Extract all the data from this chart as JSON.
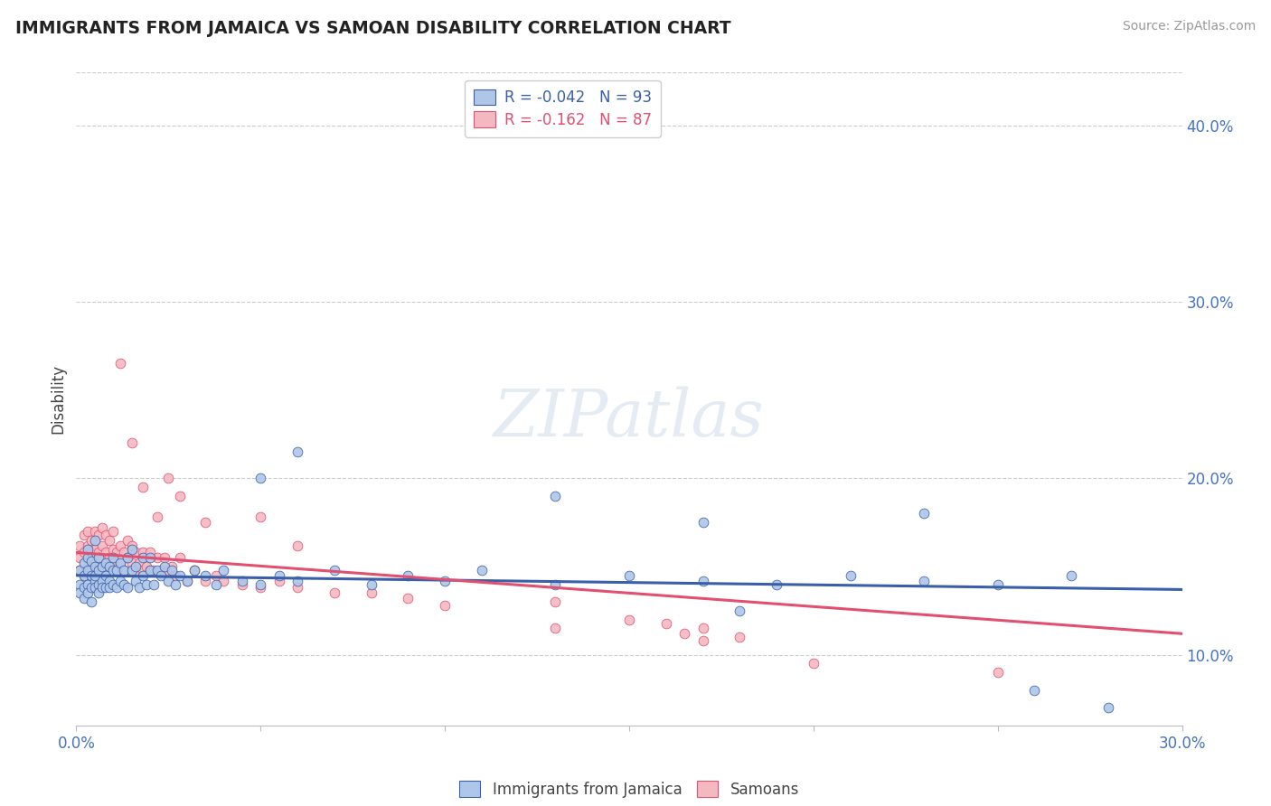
{
  "title": "IMMIGRANTS FROM JAMAICA VS SAMOAN DISABILITY CORRELATION CHART",
  "source": "Source: ZipAtlas.com",
  "ylabel": "Disability",
  "xlim": [
    0.0,
    0.3
  ],
  "ylim": [
    0.06,
    0.43
  ],
  "xticks": [
    0.0,
    0.05,
    0.1,
    0.15,
    0.2,
    0.25,
    0.3
  ],
  "xtick_labels": [
    "0.0%",
    "",
    "",
    "",
    "",
    "",
    "30.0%"
  ],
  "yticks": [
    0.1,
    0.2,
    0.3,
    0.4
  ],
  "ytick_labels": [
    "10.0%",
    "20.0%",
    "30.0%",
    "40.0%"
  ],
  "legend_r1": "R = -0.042   N = 93",
  "legend_r2": "R = -0.162   N = 87",
  "legend_label1": "Immigrants from Jamaica",
  "legend_label2": "Samoans",
  "color_blue": "#aec6e8",
  "color_pink": "#f4b8c1",
  "line_color_blue": "#3a5fa8",
  "line_color_pink": "#e05070",
  "trend_blue": [
    0.0,
    0.3,
    0.145,
    0.137
  ],
  "trend_pink": [
    0.0,
    0.3,
    0.158,
    0.112
  ],
  "blue_x": [
    0.001,
    0.001,
    0.001,
    0.002,
    0.002,
    0.002,
    0.002,
    0.003,
    0.003,
    0.003,
    0.003,
    0.003,
    0.004,
    0.004,
    0.004,
    0.004,
    0.005,
    0.005,
    0.005,
    0.005,
    0.005,
    0.006,
    0.006,
    0.006,
    0.006,
    0.007,
    0.007,
    0.007,
    0.008,
    0.008,
    0.008,
    0.009,
    0.009,
    0.009,
    0.01,
    0.01,
    0.01,
    0.011,
    0.011,
    0.012,
    0.012,
    0.013,
    0.013,
    0.014,
    0.014,
    0.015,
    0.015,
    0.016,
    0.016,
    0.017,
    0.018,
    0.018,
    0.019,
    0.02,
    0.02,
    0.021,
    0.022,
    0.023,
    0.024,
    0.025,
    0.026,
    0.027,
    0.028,
    0.03,
    0.032,
    0.035,
    0.038,
    0.04,
    0.045,
    0.05,
    0.055,
    0.06,
    0.07,
    0.08,
    0.09,
    0.1,
    0.11,
    0.13,
    0.15,
    0.17,
    0.19,
    0.21,
    0.23,
    0.25,
    0.27,
    0.05,
    0.06,
    0.13,
    0.17,
    0.23,
    0.18,
    0.26,
    0.28
  ],
  "blue_y": [
    0.14,
    0.148,
    0.135,
    0.138,
    0.145,
    0.152,
    0.132,
    0.14,
    0.148,
    0.155,
    0.135,
    0.16,
    0.138,
    0.145,
    0.153,
    0.13,
    0.142,
    0.15,
    0.138,
    0.165,
    0.145,
    0.14,
    0.148,
    0.155,
    0.135,
    0.142,
    0.15,
    0.138,
    0.145,
    0.152,
    0.138,
    0.142,
    0.15,
    0.138,
    0.148,
    0.155,
    0.14,
    0.148,
    0.138,
    0.152,
    0.142,
    0.148,
    0.14,
    0.155,
    0.138,
    0.148,
    0.16,
    0.142,
    0.15,
    0.138,
    0.145,
    0.155,
    0.14,
    0.148,
    0.155,
    0.14,
    0.148,
    0.145,
    0.15,
    0.142,
    0.148,
    0.14,
    0.145,
    0.142,
    0.148,
    0.145,
    0.14,
    0.148,
    0.142,
    0.14,
    0.145,
    0.142,
    0.148,
    0.14,
    0.145,
    0.142,
    0.148,
    0.14,
    0.145,
    0.142,
    0.14,
    0.145,
    0.142,
    0.14,
    0.145,
    0.2,
    0.215,
    0.19,
    0.175,
    0.18,
    0.125,
    0.08,
    0.07
  ],
  "pink_x": [
    0.001,
    0.001,
    0.001,
    0.002,
    0.002,
    0.002,
    0.003,
    0.003,
    0.003,
    0.004,
    0.004,
    0.004,
    0.005,
    0.005,
    0.005,
    0.006,
    0.006,
    0.006,
    0.007,
    0.007,
    0.007,
    0.008,
    0.008,
    0.008,
    0.009,
    0.009,
    0.01,
    0.01,
    0.01,
    0.011,
    0.011,
    0.012,
    0.012,
    0.013,
    0.013,
    0.014,
    0.014,
    0.015,
    0.015,
    0.016,
    0.016,
    0.017,
    0.018,
    0.018,
    0.019,
    0.02,
    0.02,
    0.021,
    0.022,
    0.023,
    0.024,
    0.025,
    0.026,
    0.027,
    0.028,
    0.03,
    0.032,
    0.035,
    0.038,
    0.04,
    0.045,
    0.05,
    0.055,
    0.06,
    0.07,
    0.08,
    0.09,
    0.1,
    0.13,
    0.15,
    0.16,
    0.17,
    0.18,
    0.012,
    0.015,
    0.018,
    0.022,
    0.025,
    0.028,
    0.035,
    0.05,
    0.06,
    0.13,
    0.165,
    0.17,
    0.2,
    0.25
  ],
  "pink_y": [
    0.148,
    0.155,
    0.162,
    0.145,
    0.158,
    0.168,
    0.15,
    0.162,
    0.17,
    0.148,
    0.158,
    0.165,
    0.152,
    0.16,
    0.17,
    0.148,
    0.158,
    0.168,
    0.15,
    0.162,
    0.172,
    0.148,
    0.158,
    0.168,
    0.155,
    0.165,
    0.152,
    0.16,
    0.17,
    0.148,
    0.158,
    0.152,
    0.162,
    0.148,
    0.158,
    0.155,
    0.165,
    0.152,
    0.162,
    0.148,
    0.158,
    0.152,
    0.148,
    0.158,
    0.15,
    0.148,
    0.158,
    0.148,
    0.155,
    0.148,
    0.155,
    0.148,
    0.15,
    0.145,
    0.155,
    0.142,
    0.148,
    0.142,
    0.145,
    0.142,
    0.14,
    0.138,
    0.142,
    0.138,
    0.135,
    0.135,
    0.132,
    0.128,
    0.13,
    0.12,
    0.118,
    0.115,
    0.11,
    0.265,
    0.22,
    0.195,
    0.178,
    0.2,
    0.19,
    0.175,
    0.178,
    0.162,
    0.115,
    0.112,
    0.108,
    0.095,
    0.09
  ]
}
